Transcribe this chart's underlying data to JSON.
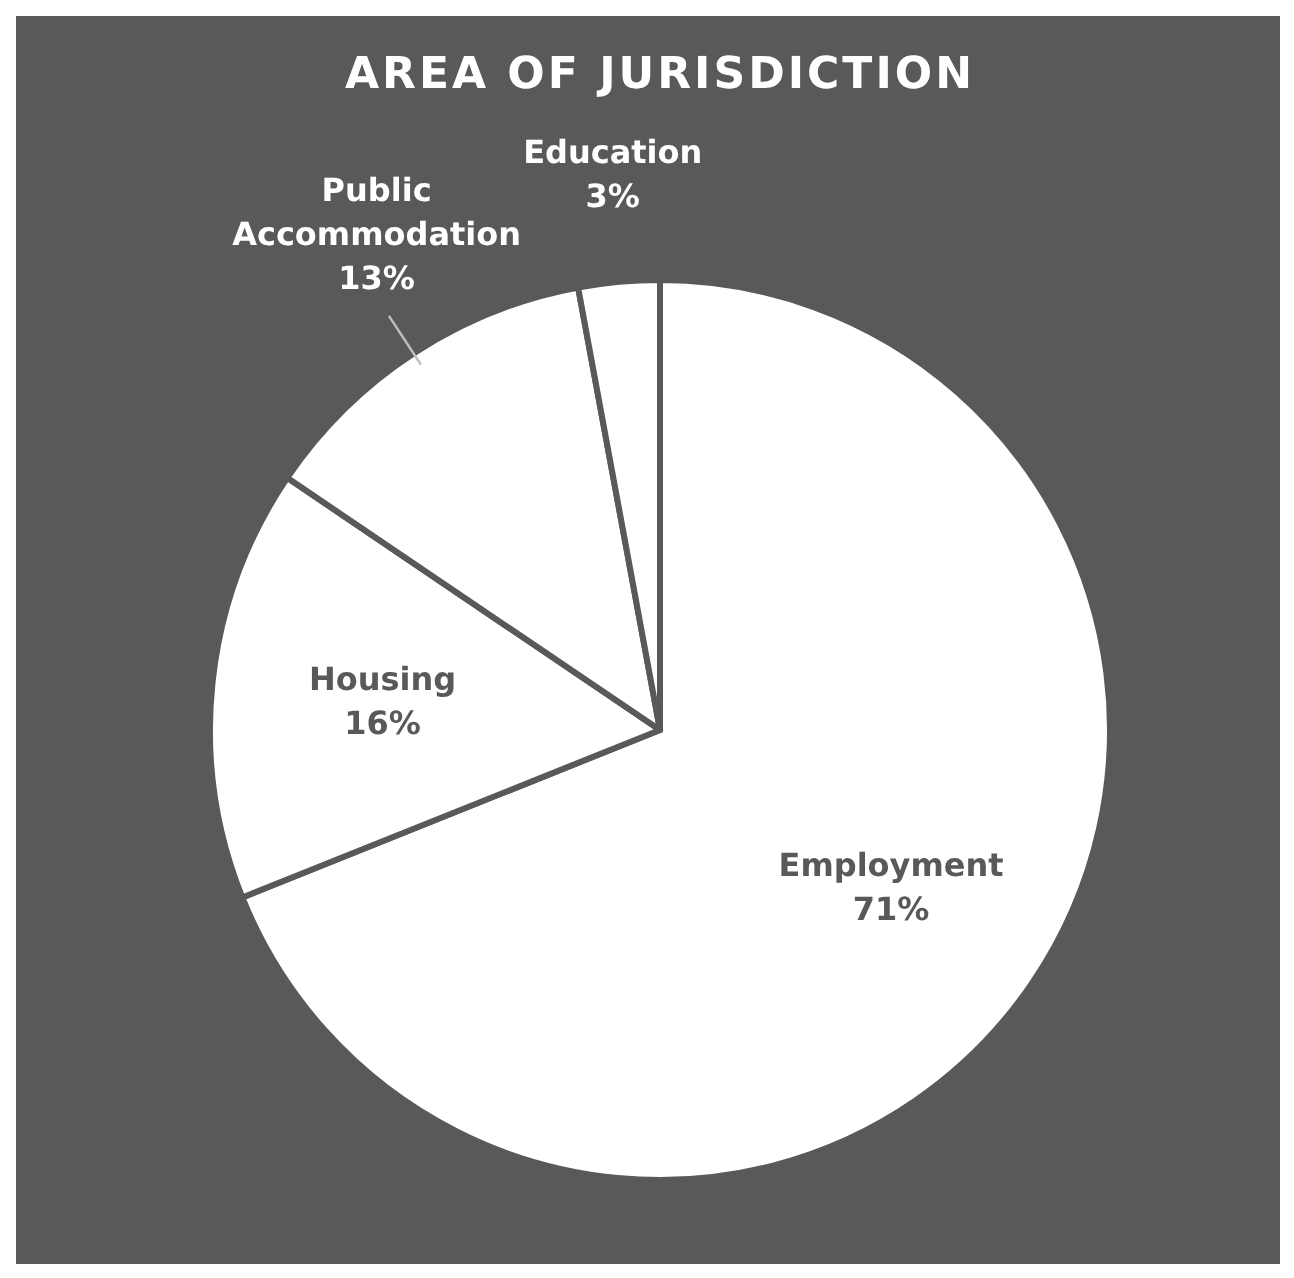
{
  "chart_data": {
    "type": "pie",
    "title": "AREA OF JURISDICTION",
    "categories": [
      "Employment",
      "Housing",
      "Public Accommodation",
      "Education"
    ],
    "values": [
      71,
      16,
      13,
      3
    ],
    "value_labels": [
      "71%",
      "16%",
      "13%",
      "3%"
    ],
    "colors": [
      "#ffffff",
      "#ffffff",
      "#ffffff",
      "#ffffff"
    ],
    "legend": false
  }
}
